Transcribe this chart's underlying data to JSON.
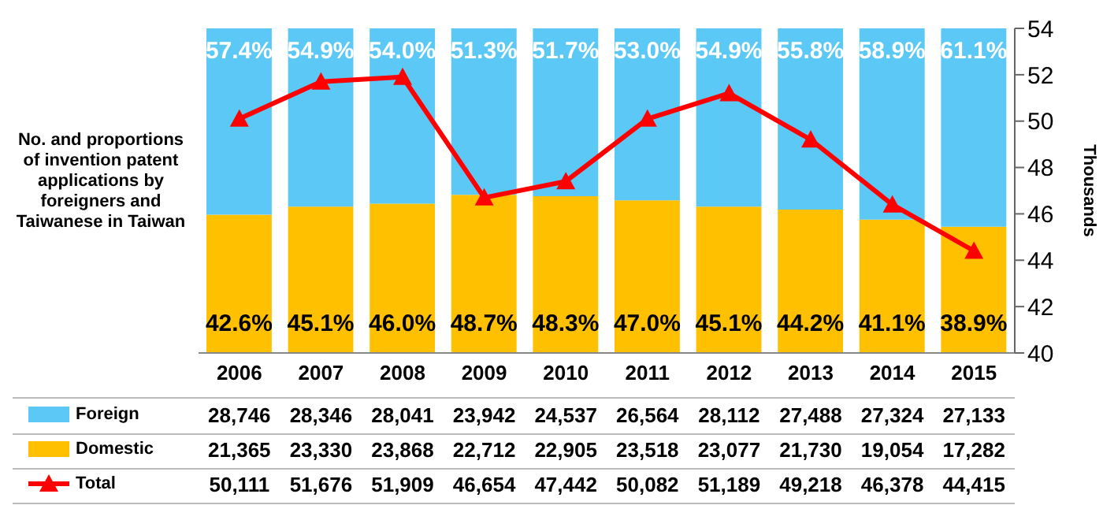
{
  "chart_data": {
    "type": "bar",
    "ylabel": "No. and proportions of invention patent applications by foreigners and Taiwanese in Taiwan",
    "y2label": "Thousands",
    "categories": [
      "2006",
      "2007",
      "2008",
      "2009",
      "2010",
      "2011",
      "2012",
      "2013",
      "2014",
      "2015"
    ],
    "stacked": true,
    "legend": "bottom",
    "marker": "triangle",
    "ylim": [
      0,
      100
    ],
    "series": [
      {
        "name": "Domestic",
        "color": "#ffc000",
        "values": [
          42.6,
          45.1,
          46.0,
          48.7,
          48.3,
          47.0,
          45.1,
          44.2,
          41.1,
          38.9
        ],
        "value_labels": [
          "42.6%",
          "45.1%",
          "46.0%",
          "48.7%",
          "48.3%",
          "47.0%",
          "45.1%",
          "44.2%",
          "41.1%",
          "38.9%"
        ]
      },
      {
        "name": "Foreign",
        "color": "#5bc8f5",
        "values": [
          57.4,
          54.9,
          54.0,
          51.3,
          51.7,
          53.0,
          54.9,
          55.8,
          58.9,
          61.1
        ],
        "value_labels": [
          "57.4%",
          "54.9%",
          "54.0%",
          "51.3%",
          "51.7%",
          "53.0%",
          "54.9%",
          "55.8%",
          "58.9%",
          "61.1%"
        ]
      },
      {
        "name": "Total",
        "type": "line",
        "axis": "y2",
        "color": "#ff0000",
        "values": [
          50.1,
          51.7,
          51.9,
          46.7,
          47.4,
          50.1,
          51.2,
          49.2,
          46.4,
          44.4
        ]
      }
    ],
    "y2lim": [
      40,
      54
    ],
    "y2ticks": [
      40,
      42,
      44,
      46,
      48,
      50,
      52,
      54
    ],
    "annotations": [
      "28,746",
      "28,346",
      "28,041",
      "23,942",
      "24,537",
      "26,564",
      "28,112",
      "27,488",
      "27,324",
      "27,133",
      "21,365",
      "23,330",
      "23,868",
      "22,712",
      "22,905",
      "23,518",
      "23,077",
      "21,730",
      "19,054",
      "17,282",
      "50,111",
      "51,676",
      "51,909",
      "46,654",
      "47,442",
      "50,082",
      "51,189",
      "49,218",
      "46,378",
      "44,415"
    ]
  }
}
